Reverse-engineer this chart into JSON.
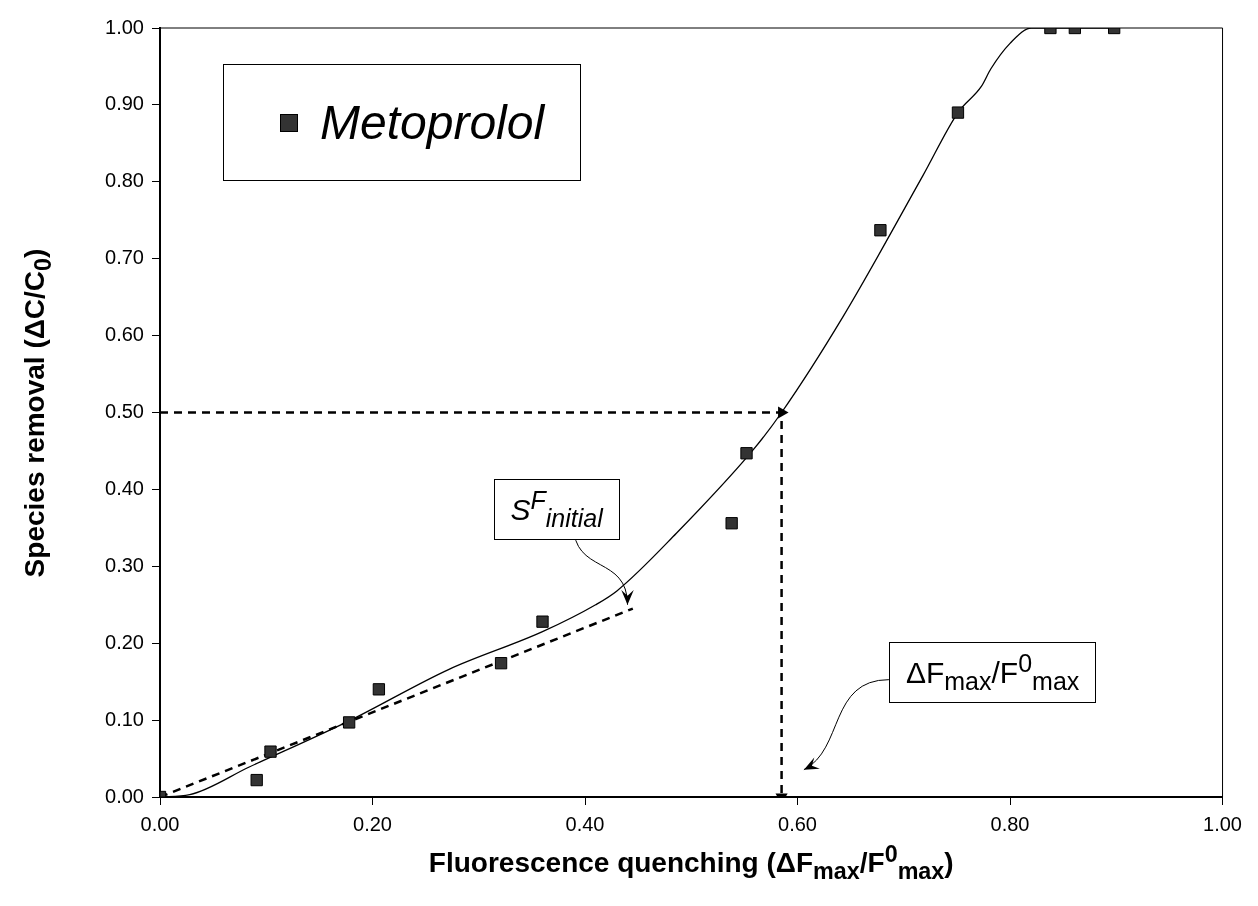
{
  "chart_data": {
    "type": "scatter",
    "xlabel": "Fluorescence quenching (ΔF$_{max}$/F$^{0}$$_{max}$)",
    "ylabel": "Species removal (ΔC/C$_{0}$)",
    "series": [
      {
        "name": "Metoprolol",
        "type": "scatter",
        "color": "#333333",
        "marker": "square",
        "x": [
          0,
          0.091,
          0.104,
          0.178,
          0.206,
          0.321,
          0.36,
          0.538,
          0.552,
          0.678,
          0.751,
          0.838,
          0.861,
          0.898
        ],
        "values": [
          0,
          0.022,
          0.059,
          0.097,
          0.14,
          0.174,
          0.228,
          0.356,
          0.447,
          0.737,
          0.89,
          1.0,
          1.0,
          1.0
        ]
      },
      {
        "type": "line",
        "color": "#000000",
        "marker": "none",
        "line_style": "solid",
        "x": [
          0,
          0.028,
          0.084,
          0.178,
          0.272,
          0.36,
          0.41,
          0.43,
          0.486,
          0.558,
          0.585,
          0.643,
          0.718,
          0.751,
          0.773,
          0.782,
          0.8,
          0.82,
          0.9
        ],
        "values": [
          0,
          0.003,
          0.039,
          0.099,
          0.166,
          0.215,
          0.25,
          0.268,
          0.343,
          0.451,
          0.5,
          0.625,
          0.808,
          0.89,
          0.924,
          0.947,
          0.98,
          1.0,
          1.0
        ]
      },
      {
        "type": "line",
        "color": "#000000",
        "marker": "none",
        "line_style": "dashed",
        "x": [
          0,
          0.445
        ],
        "values": [
          0,
          0.245
        ]
      },
      {
        "type": "line",
        "color": "#000000",
        "marker": "none",
        "line_style": "dashed",
        "x": [
          0,
          0.585,
          0.585
        ],
        "values": [
          0.5,
          0.5,
          0
        ]
      }
    ],
    "annotations": [
      {
        "text": "S$^{F}$$_{initial}$",
        "x": 0.44,
        "y": 0.25
      },
      "ΔF$_{max}$/F$^{0}$$_{max}$"
    ],
    "xlim": [
      0,
      1
    ],
    "ylim": [
      0,
      1
    ],
    "xticks": [
      {
        "value": 0,
        "label": "0.00"
      },
      {
        "value": 0.2,
        "label": "0.20"
      },
      {
        "value": 0.4,
        "label": "0.40"
      },
      {
        "value": 0.6,
        "label": "0.60"
      },
      {
        "value": 0.8,
        "label": "0.80"
      },
      {
        "value": 1,
        "label": "1.00"
      }
    ],
    "yticks": [
      {
        "value": 0,
        "label": "0.00"
      },
      {
        "value": 0.1,
        "label": "0.10"
      },
      {
        "value": 0.2,
        "label": "0.20"
      },
      {
        "value": 0.3,
        "label": "0.30"
      },
      {
        "value": 0.4,
        "label": "0.40"
      },
      {
        "value": 0.5,
        "label": "0.50"
      },
      {
        "value": 0.6,
        "label": "0.60"
      },
      {
        "value": 0.7,
        "label": "0.70"
      },
      {
        "value": 0.8,
        "label": "0.80"
      },
      {
        "value": 0.9,
        "label": "0.90"
      },
      {
        "value": 1,
        "label": "1.00"
      }
    ],
    "grid": false,
    "legend": "top left"
  }
}
